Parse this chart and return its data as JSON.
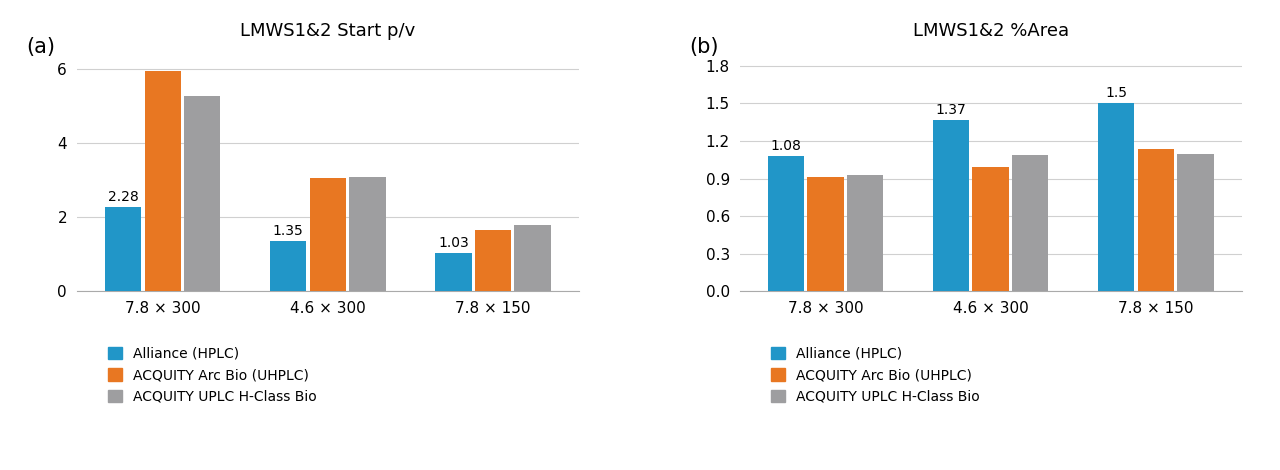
{
  "panel_a": {
    "title": "LMWS1&2 Start p/v",
    "label": "(a)",
    "categories": [
      "7.8 × 300",
      "4.6 × 300",
      "7.8 × 150"
    ],
    "series": {
      "Alliance (HPLC)": [
        2.28,
        1.35,
        1.03
      ],
      "ACQUITY Arc Bio (UHPLC)": [
        5.96,
        3.07,
        1.65
      ],
      "ACQUITY UPLC H-Class Bio": [
        5.27,
        3.08,
        1.78
      ]
    },
    "annotate_first": [
      2.28,
      1.35,
      1.03
    ],
    "ylim": [
      0,
      6.6
    ],
    "yticks": [
      0.0,
      2.0,
      4.0,
      6.0
    ]
  },
  "panel_b": {
    "title": "LMWS1&2 %Area",
    "label": "(b)",
    "categories": [
      "7.8 × 300",
      "4.6 × 300",
      "7.8 × 150"
    ],
    "series": {
      "Alliance (HPLC)": [
        1.08,
        1.37,
        1.5
      ],
      "ACQUITY Arc Bio (UHPLC)": [
        0.91,
        0.99,
        1.14
      ],
      "ACQUITY UPLC H-Class Bio": [
        0.93,
        1.09,
        1.1
      ]
    },
    "annotate_first": [
      1.08,
      1.37,
      1.5
    ],
    "ylim": [
      0,
      1.95
    ],
    "yticks": [
      0.0,
      0.3,
      0.6,
      0.9,
      1.2,
      1.5,
      1.8
    ]
  },
  "colors": {
    "Alliance (HPLC)": "#2196C8",
    "ACQUITY Arc Bio (UHPLC)": "#E87722",
    "ACQUITY UPLC H-Class Bio": "#9E9EA0"
  },
  "legend_order": [
    "Alliance (HPLC)",
    "ACQUITY Arc Bio (UHPLC)",
    "ACQUITY UPLC H-Class Bio"
  ],
  "bar_width": 0.22,
  "background_color": "#ffffff",
  "grid_color": "#d0d0d0",
  "title_fontsize": 13,
  "label_fontsize": 15,
  "tick_fontsize": 11,
  "annotation_fontsize": 10,
  "legend_fontsize": 10
}
